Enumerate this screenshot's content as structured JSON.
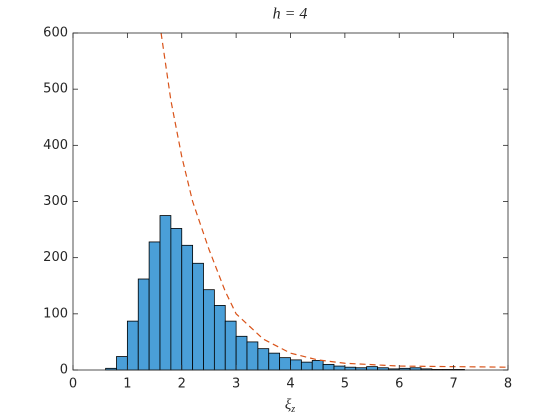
{
  "chart_data": {
    "type": "histogram",
    "title": "h = 4",
    "xlabel": {
      "symbol": "ξ",
      "subscript": "z"
    },
    "bins": [
      0.6,
      0.8,
      1.0,
      1.2,
      1.4,
      1.6,
      1.8,
      2.0,
      2.2,
      2.4,
      2.6,
      2.8,
      3.0,
      3.2,
      3.4,
      3.6,
      3.8,
      4.0,
      4.2,
      4.4,
      4.6,
      4.8,
      5.0,
      5.2,
      5.4,
      5.6,
      5.8,
      6.0,
      6.2,
      6.4,
      6.6,
      6.8,
      7.0,
      7.2
    ],
    "values": [
      3,
      24,
      87,
      162,
      228,
      275,
      252,
      222,
      190,
      143,
      115,
      87,
      60,
      50,
      38,
      30,
      22,
      18,
      14,
      17,
      10,
      7,
      5,
      4,
      6,
      4,
      2,
      3,
      4,
      2,
      1,
      1,
      1
    ],
    "color": "#4a9fd8",
    "curve": {
      "x": [
        1.62,
        1.8,
        2.0,
        2.2,
        2.5,
        2.8,
        3.0,
        3.5,
        4.0,
        4.5,
        5.0,
        6.0,
        7.0,
        8.0
      ],
      "values": [
        600,
        480,
        380,
        300,
        215,
        140,
        100,
        55,
        30,
        18,
        12,
        7,
        6,
        5
      ],
      "color": "#d95319"
    },
    "xlim": [
      0,
      8
    ],
    "xticks": [
      0,
      1,
      2,
      3,
      4,
      5,
      6,
      7,
      8
    ],
    "ylim": [
      0,
      600
    ],
    "yticks": [
      0,
      100,
      200,
      300,
      400,
      500,
      600
    ],
    "grid": false
  }
}
